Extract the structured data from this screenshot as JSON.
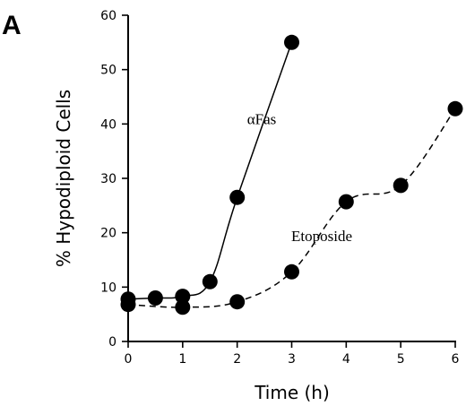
{
  "panel_label": "A",
  "chart_data": {
    "type": "line",
    "title": "",
    "xlabel": "Time (h)",
    "ylabel": "% Hypodiploid Cells",
    "xlim": [
      0,
      6
    ],
    "ylim": [
      0,
      60
    ],
    "x_ticks": [
      0,
      1,
      2,
      3,
      4,
      5,
      6
    ],
    "y_ticks": [
      0,
      10,
      20,
      30,
      40,
      50,
      60
    ],
    "grid": false,
    "legend": "none",
    "series": [
      {
        "name": "αFas",
        "line_style": "solid",
        "color": "#000000",
        "label_anchor": [
          2.45,
          40
        ],
        "x": [
          0,
          0.5,
          1,
          1.5,
          2,
          3
        ],
        "y": [
          7.8,
          8.0,
          8.3,
          11.0,
          26.5,
          55.0
        ]
      },
      {
        "name": "Etoposide",
        "line_style": "dashed",
        "color": "#000000",
        "label_anchor": [
          3.55,
          18.5
        ],
        "x": [
          0,
          1,
          2,
          3,
          4,
          5,
          6
        ],
        "y": [
          6.8,
          6.3,
          7.3,
          12.8,
          25.7,
          28.7,
          42.8
        ]
      }
    ]
  }
}
